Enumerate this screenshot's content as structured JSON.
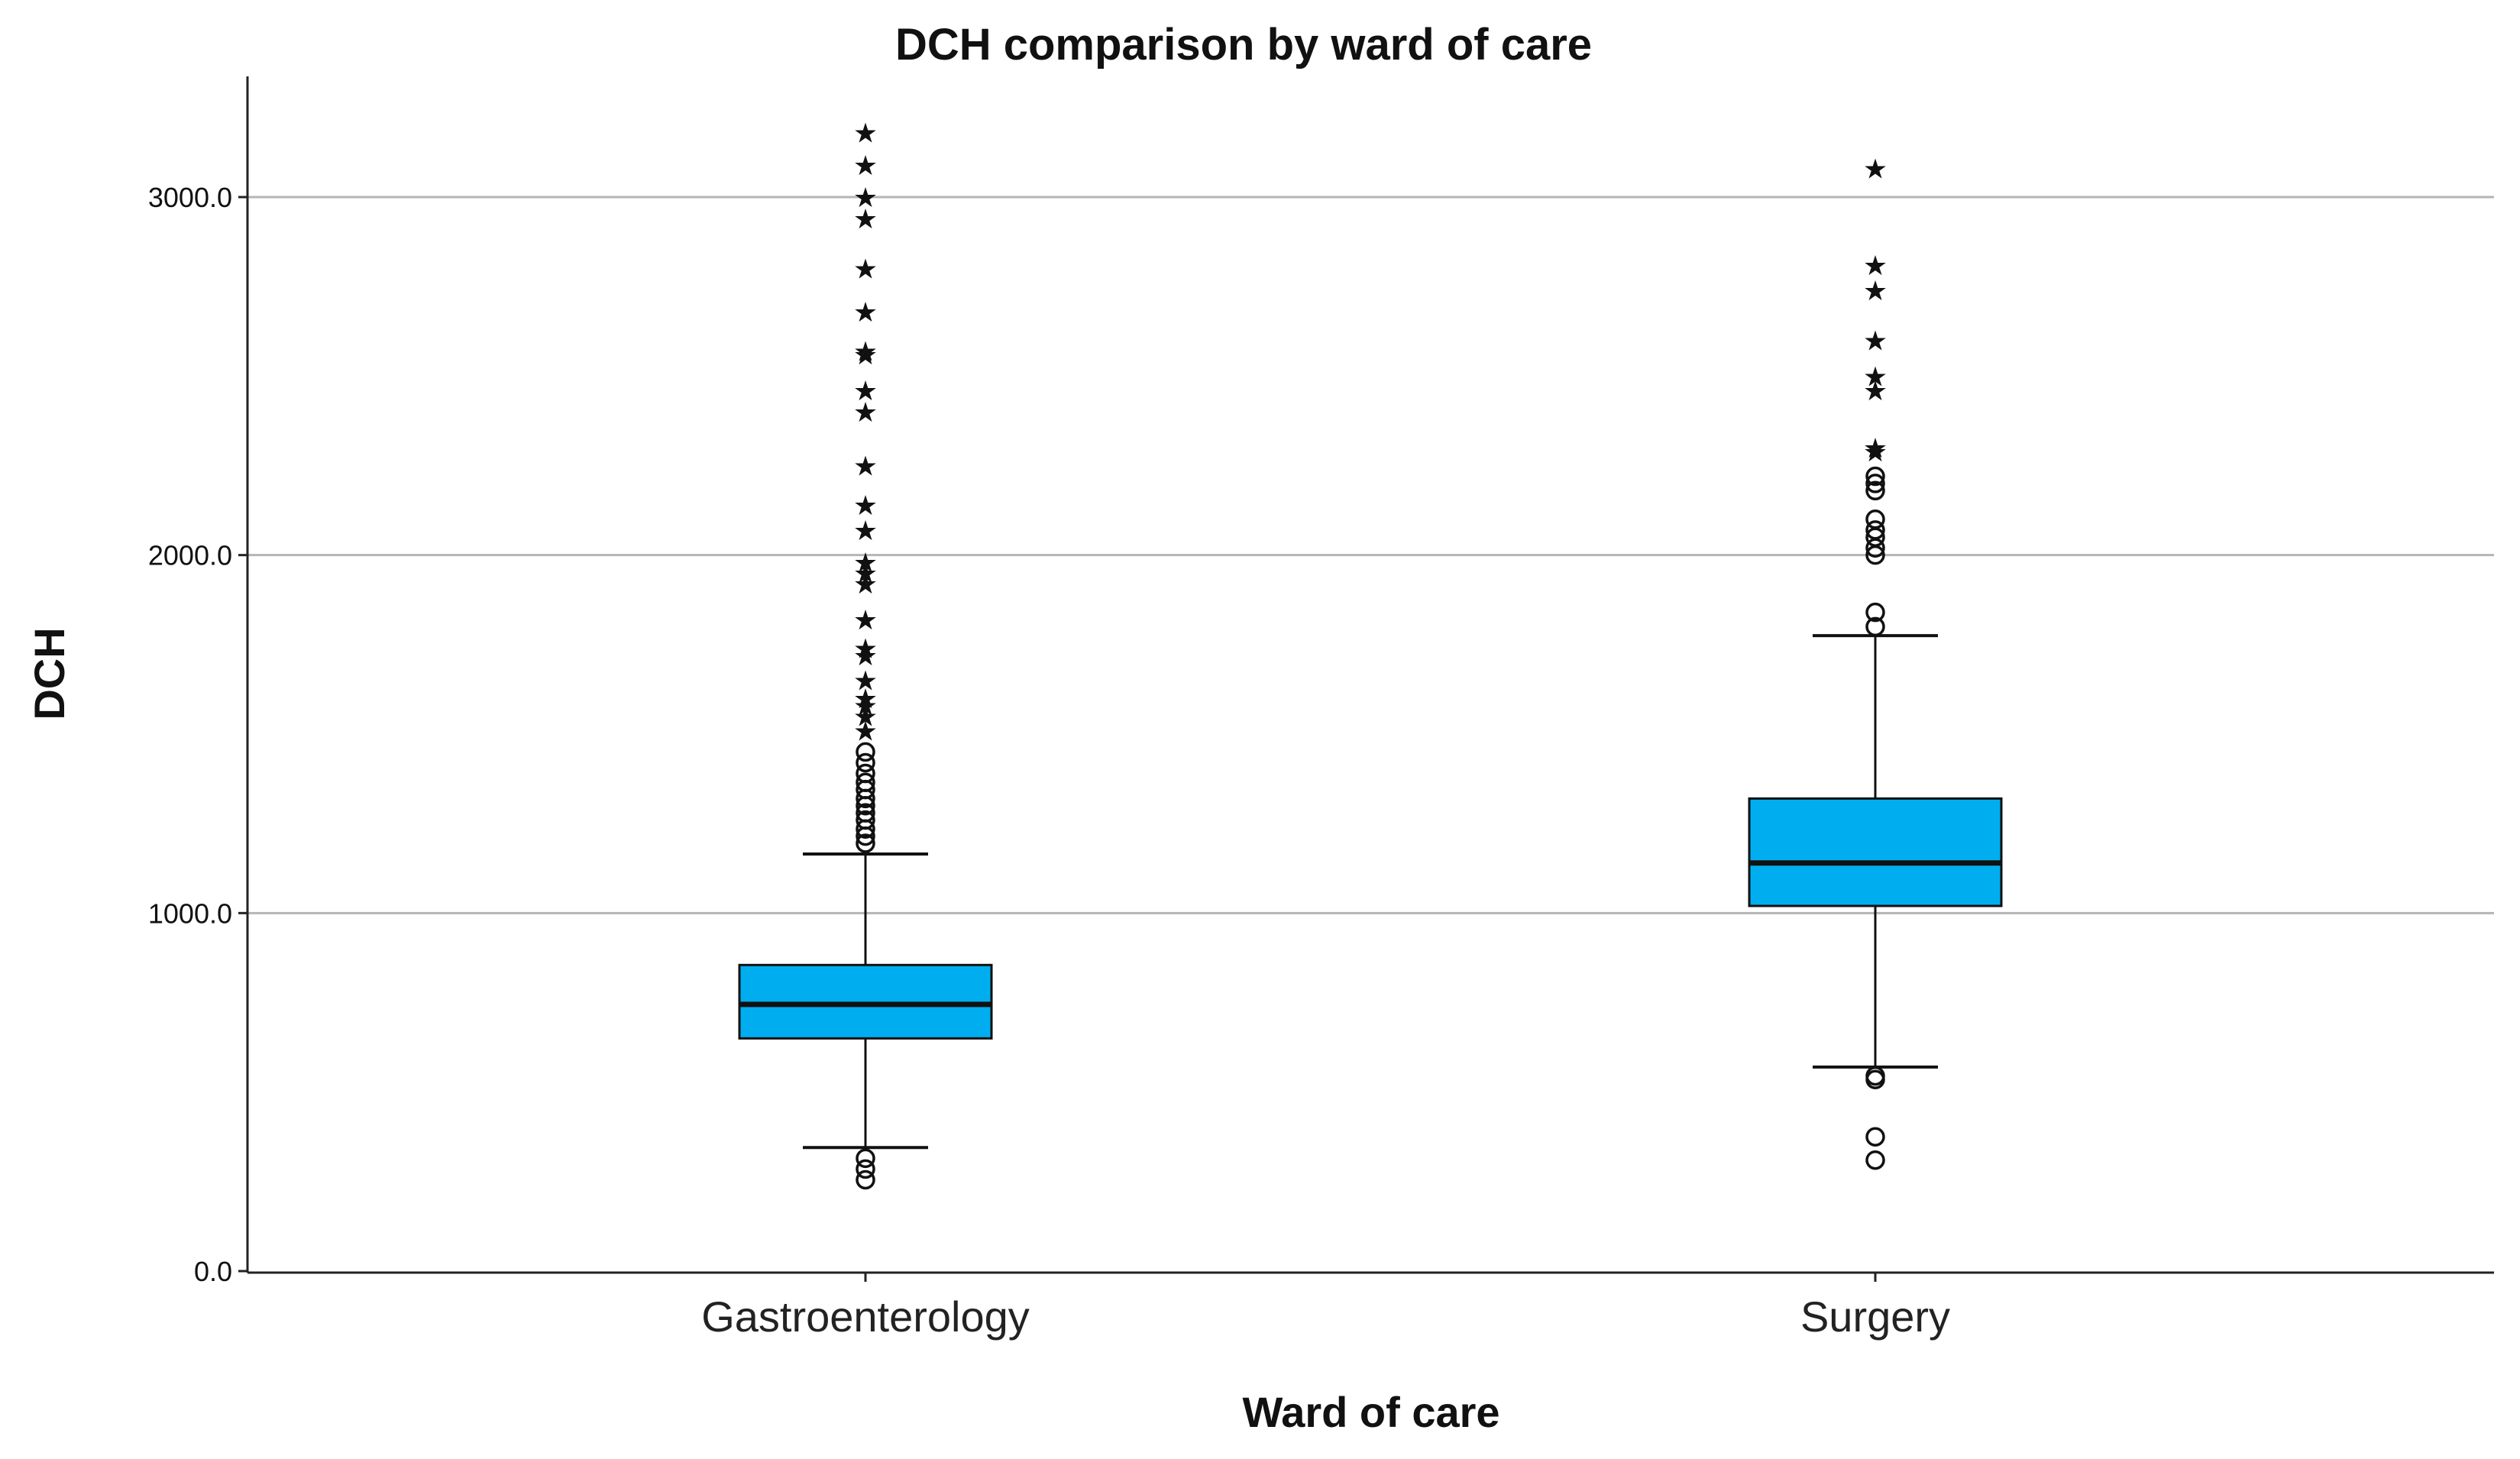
{
  "chart_data": {
    "type": "box",
    "title": "DCH comparison by ward of care",
    "xlabel": "Ward of care",
    "ylabel": "DCH",
    "ylim": [
      0,
      3300
    ],
    "yticks": [
      0,
      1000,
      2000,
      3000
    ],
    "ytick_labels": [
      "0.0",
      "1000.0",
      "2000.0",
      "3000.0"
    ],
    "grid": true,
    "box_color": "#00AEEF",
    "categories": [
      "Gastroenterology",
      "Surgery"
    ],
    "boxes": [
      {
        "name": "Gastroenterology",
        "whisker_low": 345,
        "q1": 650,
        "median": 745,
        "q3": 855,
        "whisker_high": 1165,
        "outliers": [
          315,
          285,
          255,
          1195,
          1215,
          1235,
          1260,
          1280,
          1300,
          1320,
          1345,
          1365,
          1390,
          1420,
          1450
        ],
        "extremes": [
          1510,
          1550,
          1580,
          1600,
          1650,
          1720,
          1740,
          1820,
          1920,
          1950,
          1980,
          2070,
          2140,
          2250,
          2400,
          2460,
          2560,
          2570,
          2680,
          2800,
          2940,
          3000,
          3090,
          3180
        ]
      },
      {
        "name": "Surgery",
        "whisker_low": 570,
        "q1": 1020,
        "median": 1140,
        "q3": 1320,
        "whisker_high": 1775,
        "outliers": [
          535,
          545,
          375,
          310,
          1800,
          1840,
          2000,
          2020,
          2050,
          2070,
          2100,
          2180,
          2200,
          2220
        ],
        "extremes": [
          2290,
          2300,
          2460,
          2500,
          2600,
          2740,
          2810,
          3080
        ]
      }
    ]
  }
}
